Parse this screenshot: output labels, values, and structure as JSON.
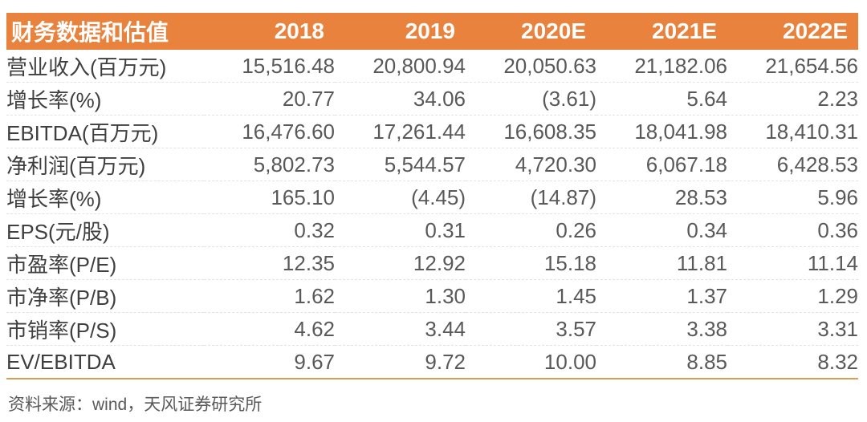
{
  "chart_data": {
    "type": "table",
    "title": "财务数据和估值",
    "columns": [
      "2018",
      "2019",
      "2020E",
      "2021E",
      "2022E"
    ],
    "rows": [
      {
        "label": "营业收入(百万元)",
        "values": [
          "15,516.48",
          "20,800.94",
          "20,050.63",
          "21,182.06",
          "21,654.56"
        ]
      },
      {
        "label": "增长率(%)",
        "values": [
          "20.77",
          "34.06",
          "(3.61)",
          "5.64",
          "2.23"
        ]
      },
      {
        "label": "EBITDA(百万元)",
        "values": [
          "16,476.60",
          "17,261.44",
          "16,608.35",
          "18,041.98",
          "18,410.31"
        ]
      },
      {
        "label": "净利润(百万元)",
        "values": [
          "5,802.73",
          "5,544.57",
          "4,720.30",
          "6,067.18",
          "6,428.53"
        ]
      },
      {
        "label": "增长率(%)",
        "values": [
          "165.10",
          "(4.45)",
          "(14.87)",
          "28.53",
          "5.96"
        ]
      },
      {
        "label": "EPS(元/股)",
        "values": [
          "0.32",
          "0.31",
          "0.26",
          "0.34",
          "0.36"
        ]
      },
      {
        "label": "市盈率(P/E)",
        "values": [
          "12.35",
          "12.92",
          "15.18",
          "11.81",
          "11.14"
        ]
      },
      {
        "label": "市净率(P/B)",
        "values": [
          "1.62",
          "1.30",
          "1.45",
          "1.37",
          "1.29"
        ]
      },
      {
        "label": "市销率(P/S)",
        "values": [
          "4.62",
          "3.44",
          "3.57",
          "3.38",
          "3.31"
        ]
      },
      {
        "label": "EV/EBITDA",
        "values": [
          "9.67",
          "9.72",
          "10.00",
          "8.85",
          "8.32"
        ]
      }
    ]
  },
  "footer": {
    "source": "资料来源：wind，天风证券研究所"
  },
  "colors": {
    "header_bg": "#E8823C",
    "header_text": "#FFFFFF",
    "label_text": "#3F3F3F",
    "value_text": "#595959",
    "bottom_rule": "#D99E55",
    "row_divider": "#E3E3E3"
  }
}
